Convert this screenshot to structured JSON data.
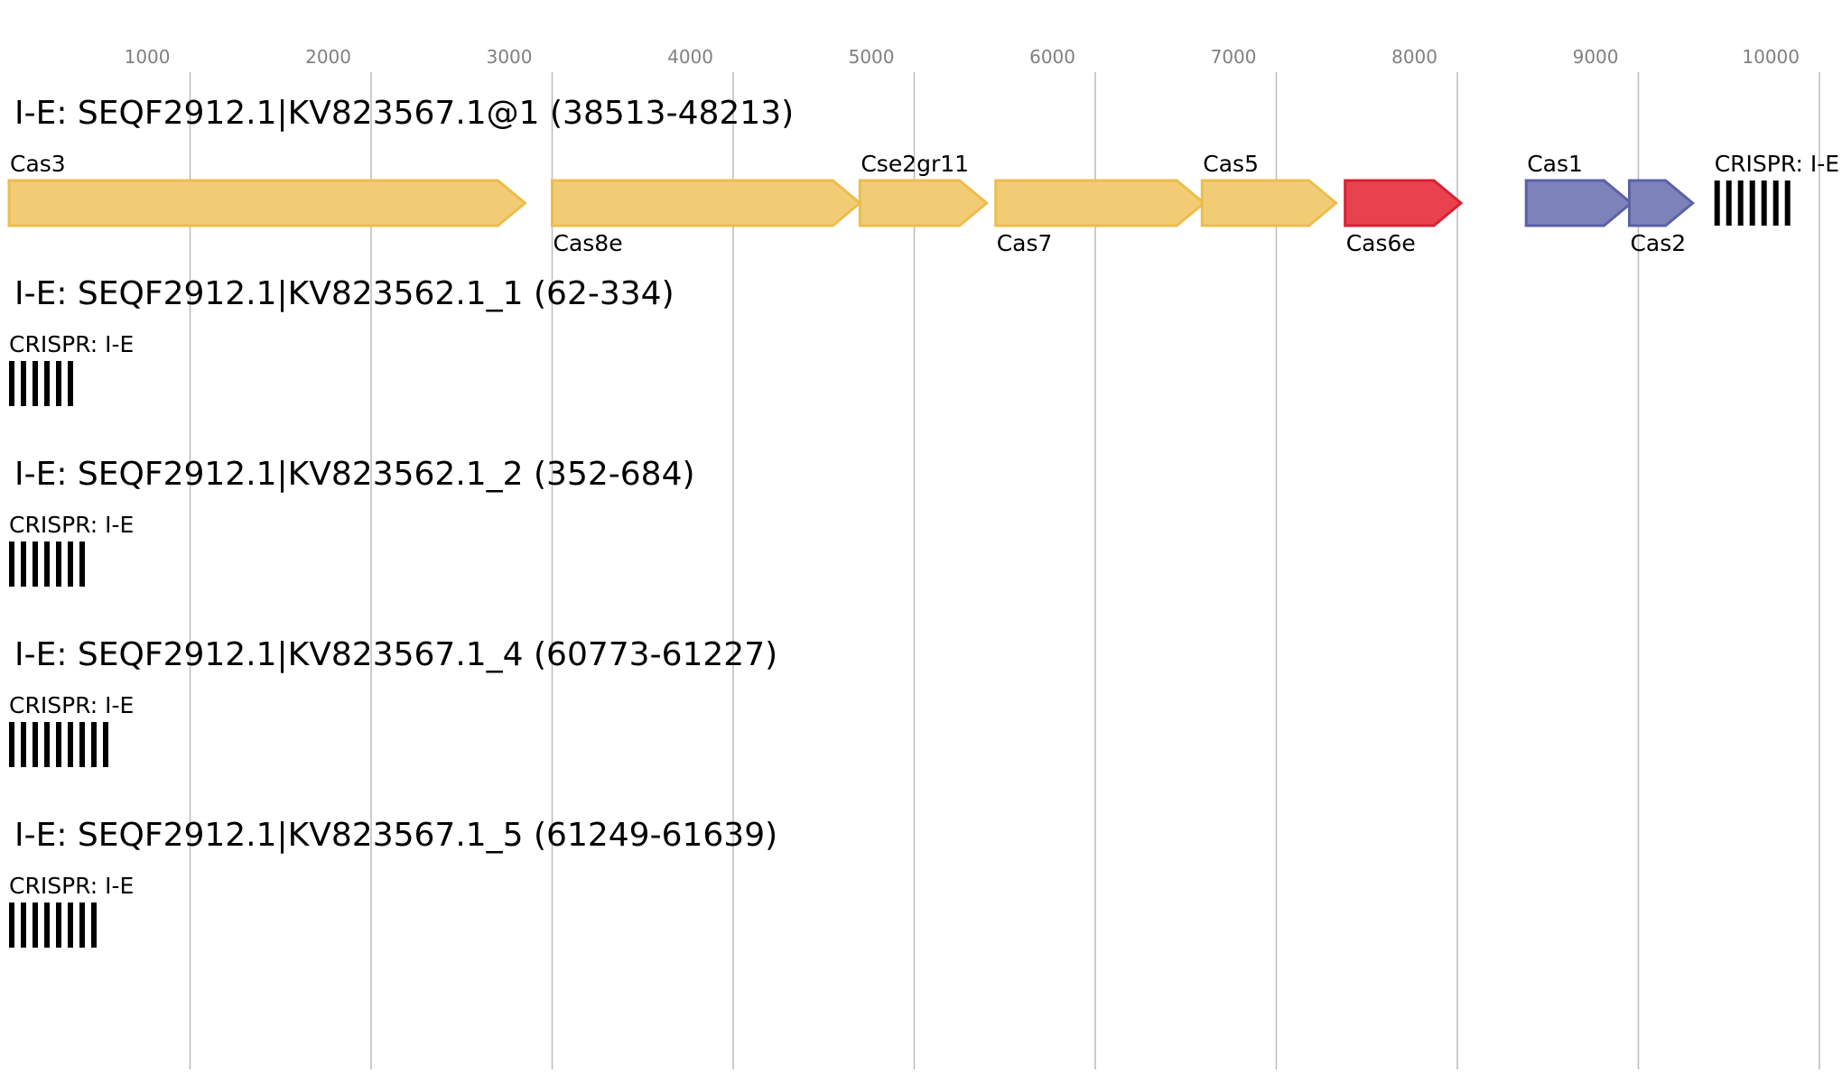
{
  "chart_data": {
    "type": "gene-map",
    "axis": {
      "ticks": [
        {
          "value": 1000,
          "label": "1000"
        },
        {
          "value": 2000,
          "label": "2000"
        },
        {
          "value": 3000,
          "label": "3000"
        },
        {
          "value": 4000,
          "label": "4000"
        },
        {
          "value": 5000,
          "label": "5000"
        },
        {
          "value": 6000,
          "label": "6000"
        },
        {
          "value": 7000,
          "label": "7000"
        },
        {
          "value": 8000,
          "label": "8000"
        },
        {
          "value": 9000,
          "label": "9000"
        },
        {
          "value": 10000,
          "label": "10000"
        }
      ]
    },
    "colors": {
      "cas_core": "#f2cc75",
      "cas_core_stroke": "#ecbd4d",
      "cas6e": "#e8424f",
      "cas6e_stroke": "#d92033",
      "adaptation": "#7d82b9",
      "adaptation_stroke": "#5b61a6",
      "crispr": "#000000"
    },
    "tracks": [
      {
        "title": "I-E: SEQF2912.1|KV823567.1@1 (38513-48213)",
        "features": [
          {
            "kind": "gene",
            "name": "Cas3",
            "start": 0,
            "end": 2850,
            "color_key": "cas_core",
            "label_pos": "above"
          },
          {
            "kind": "gene",
            "name": "Cas8e",
            "start": 3000,
            "end": 4700,
            "color_key": "cas_core",
            "label_pos": "below"
          },
          {
            "kind": "gene",
            "name": "Cse2gr11",
            "start": 4700,
            "end": 5400,
            "color_key": "cas_core",
            "label_pos": "above"
          },
          {
            "kind": "gene",
            "name": "Cas7",
            "start": 5450,
            "end": 6600,
            "color_key": "cas_core",
            "label_pos": "below"
          },
          {
            "kind": "gene",
            "name": "Cas5",
            "start": 6590,
            "end": 7330,
            "color_key": "cas_core",
            "label_pos": "above"
          },
          {
            "kind": "gene",
            "name": "Cas6e",
            "start": 7380,
            "end": 8020,
            "color_key": "cas6e",
            "label_pos": "below"
          },
          {
            "kind": "gene",
            "name": "Cas1",
            "start": 8380,
            "end": 8960,
            "color_key": "adaptation",
            "label_pos": "above"
          },
          {
            "kind": "gene",
            "name": "Cas2",
            "start": 8950,
            "end": 9300,
            "color_key": "adaptation",
            "label_pos": "below"
          },
          {
            "kind": "crispr",
            "name": "CRISPR: I-E",
            "repeats": 7,
            "start": 9420,
            "label_pos": "above"
          }
        ]
      },
      {
        "title": "I-E: SEQF2912.1|KV823562.1_1 (62-334)",
        "features": [
          {
            "kind": "crispr",
            "name": "CRISPR: I-E",
            "repeats": 6,
            "start": 0,
            "label_pos": "above"
          }
        ]
      },
      {
        "title": "I-E: SEQF2912.1|KV823562.1_2 (352-684)",
        "features": [
          {
            "kind": "crispr",
            "name": "CRISPR: I-E",
            "repeats": 7,
            "start": 0,
            "label_pos": "above"
          }
        ]
      },
      {
        "title": "I-E: SEQF2912.1|KV823567.1_4 (60773-61227)",
        "features": [
          {
            "kind": "crispr",
            "name": "CRISPR: I-E",
            "repeats": 9,
            "start": 0,
            "label_pos": "above"
          }
        ]
      },
      {
        "title": "I-E: SEQF2912.1|KV823567.1_5 (61249-61639)",
        "features": [
          {
            "kind": "crispr",
            "name": "CRISPR: I-E",
            "repeats": 8,
            "start": 0,
            "label_pos": "above"
          }
        ]
      }
    ]
  }
}
